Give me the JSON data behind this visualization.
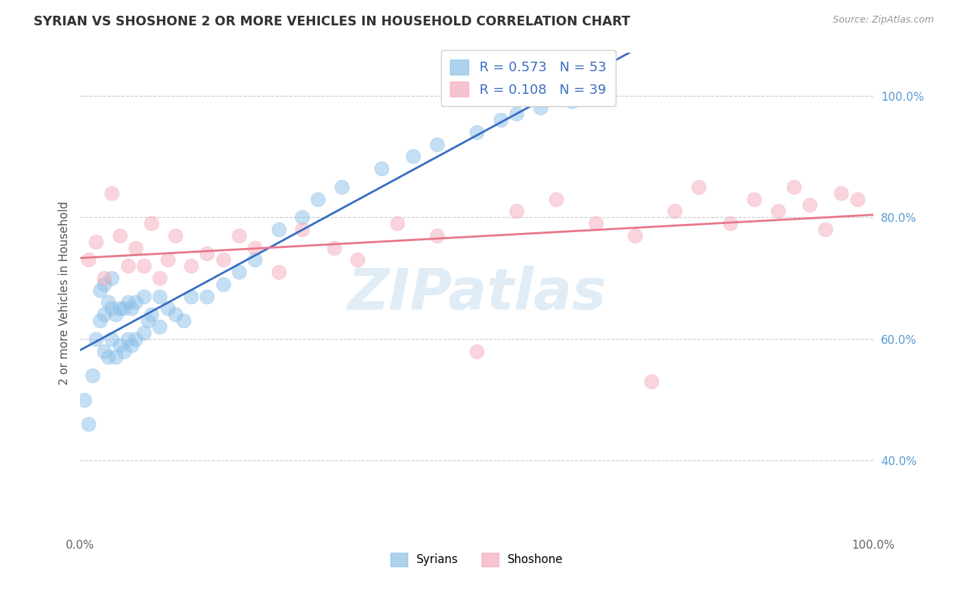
{
  "title": "SYRIAN VS SHOSHONE 2 OR MORE VEHICLES IN HOUSEHOLD CORRELATION CHART",
  "source": "Source: ZipAtlas.com",
  "ylabel": "2 or more Vehicles in Household",
  "ytick_labels": [
    "40.0%",
    "60.0%",
    "80.0%",
    "100.0%"
  ],
  "ytick_values": [
    0.4,
    0.6,
    0.8,
    1.0
  ],
  "legend_syrians": "Syrians",
  "legend_shoshone": "Shoshone",
  "R_syrians": 0.573,
  "N_syrians": 53,
  "R_shoshone": 0.108,
  "N_shoshone": 39,
  "color_syrians": "#8BBFE8",
  "color_shoshone": "#F4AABB",
  "color_line_syrians": "#3A6FC4",
  "color_line_shoshone": "#E8788A",
  "color_yticks": "#5B9BD5",
  "watermark_text": "ZIPatlas",
  "syrians_x": [
    0.005,
    0.01,
    0.015,
    0.02,
    0.025,
    0.025,
    0.03,
    0.03,
    0.03,
    0.035,
    0.035,
    0.04,
    0.04,
    0.04,
    0.045,
    0.045,
    0.05,
    0.05,
    0.055,
    0.055,
    0.06,
    0.06,
    0.065,
    0.065,
    0.07,
    0.07,
    0.08,
    0.08,
    0.085,
    0.09,
    0.1,
    0.1,
    0.11,
    0.12,
    0.13,
    0.14,
    0.16,
    0.18,
    0.2,
    0.22,
    0.25,
    0.28,
    0.3,
    0.33,
    0.38,
    0.42,
    0.45,
    0.5,
    0.53,
    0.55,
    0.58,
    0.62,
    0.65
  ],
  "syrians_y": [
    0.5,
    0.46,
    0.54,
    0.6,
    0.63,
    0.68,
    0.58,
    0.64,
    0.69,
    0.57,
    0.66,
    0.6,
    0.65,
    0.7,
    0.57,
    0.64,
    0.59,
    0.65,
    0.58,
    0.65,
    0.6,
    0.66,
    0.59,
    0.65,
    0.6,
    0.66,
    0.61,
    0.67,
    0.63,
    0.64,
    0.62,
    0.67,
    0.65,
    0.64,
    0.63,
    0.67,
    0.67,
    0.69,
    0.71,
    0.73,
    0.78,
    0.8,
    0.83,
    0.85,
    0.88,
    0.9,
    0.92,
    0.94,
    0.96,
    0.97,
    0.98,
    0.99,
    1.0
  ],
  "shoshone_x": [
    0.01,
    0.02,
    0.03,
    0.04,
    0.05,
    0.06,
    0.07,
    0.08,
    0.09,
    0.1,
    0.11,
    0.12,
    0.14,
    0.16,
    0.18,
    0.2,
    0.22,
    0.25,
    0.28,
    0.32,
    0.35,
    0.4,
    0.45,
    0.5,
    0.55,
    0.6,
    0.65,
    0.7,
    0.72,
    0.75,
    0.78,
    0.82,
    0.85,
    0.88,
    0.9,
    0.92,
    0.94,
    0.96,
    0.98
  ],
  "shoshone_y": [
    0.73,
    0.76,
    0.7,
    0.84,
    0.77,
    0.72,
    0.75,
    0.72,
    0.79,
    0.7,
    0.73,
    0.77,
    0.72,
    0.74,
    0.73,
    0.77,
    0.75,
    0.71,
    0.78,
    0.75,
    0.73,
    0.79,
    0.77,
    0.58,
    0.81,
    0.83,
    0.79,
    0.77,
    0.53,
    0.81,
    0.85,
    0.79,
    0.83,
    0.81,
    0.85,
    0.82,
    0.78,
    0.84,
    0.83
  ]
}
